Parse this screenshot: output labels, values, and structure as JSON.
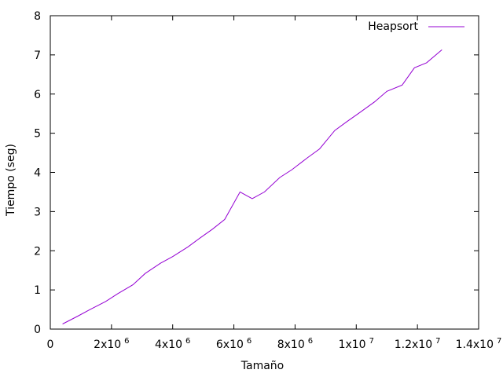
{
  "chart_data": {
    "type": "line",
    "xlabel": "Tamaño",
    "ylabel": "Tiempo (seg)",
    "xlim": [
      0,
      14000000
    ],
    "ylim": [
      0,
      8
    ],
    "grid": false,
    "legend_position": "top-right",
    "x_ticks": [
      {
        "value": 0,
        "label": "0",
        "sup": ""
      },
      {
        "value": 2000000,
        "label": "2x10",
        "sup": "6"
      },
      {
        "value": 4000000,
        "label": "4x10",
        "sup": "6"
      },
      {
        "value": 6000000,
        "label": "6x10",
        "sup": "6"
      },
      {
        "value": 8000000,
        "label": "8x10",
        "sup": "6"
      },
      {
        "value": 10000000,
        "label": "1x10",
        "sup": "7"
      },
      {
        "value": 12000000,
        "label": "1.2x10",
        "sup": "7"
      },
      {
        "value": 14000000,
        "label": "1.4x10",
        "sup": "7"
      }
    ],
    "y_ticks": [
      {
        "value": 0,
        "label": "0"
      },
      {
        "value": 1,
        "label": "1"
      },
      {
        "value": 2,
        "label": "2"
      },
      {
        "value": 3,
        "label": "3"
      },
      {
        "value": 4,
        "label": "4"
      },
      {
        "value": 5,
        "label": "5"
      },
      {
        "value": 6,
        "label": "6"
      },
      {
        "value": 7,
        "label": "7"
      },
      {
        "value": 8,
        "label": "8"
      }
    ],
    "series": [
      {
        "name": "Heapsort",
        "color": "#9400d3",
        "x": [
          400000,
          900000,
          1300000,
          1800000,
          2200000,
          2700000,
          3100000,
          3600000,
          4000000,
          4500000,
          4900000,
          5300000,
          5700000,
          6200000,
          6600000,
          7000000,
          7500000,
          7900000,
          8400000,
          8800000,
          9300000,
          9700000,
          10100000,
          10600000,
          11000000,
          11500000,
          11900000,
          12300000,
          12800000
        ],
        "y": [
          0.13,
          0.33,
          0.5,
          0.7,
          0.9,
          1.13,
          1.42,
          1.68,
          1.85,
          2.1,
          2.33,
          2.55,
          2.8,
          3.5,
          3.33,
          3.5,
          3.87,
          4.07,
          4.37,
          4.6,
          5.07,
          5.3,
          5.52,
          5.8,
          6.07,
          6.23,
          6.67,
          6.8,
          7.13
        ]
      }
    ]
  }
}
